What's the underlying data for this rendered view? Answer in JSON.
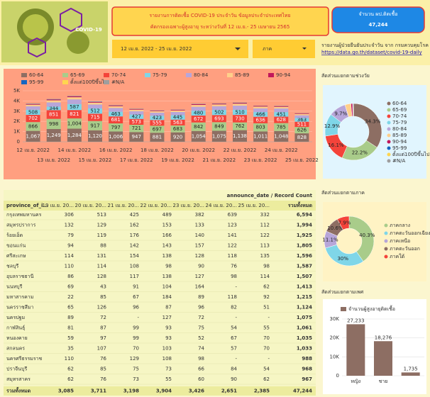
{
  "header": {
    "title_line1": "รายงานการติดเชื้อ COVID-19 ประจำวัน ข้อมูลประจำประเทศไทย",
    "title_line2": "คัดกรองเฉพาะผู้สูงอายุ ระหว่างวันที่ 12 เม.ย.- 25 เมษายน 2565",
    "total_label": "จำนวน ผป.ติดเชื้อ",
    "total_value": "47,244",
    "date_range": "12 เม.ย. 2022 - 25 เม.ย. 2022",
    "region_filter": "ภาค",
    "source": "รายงานผู้ป่วยยืนยันประจำวัน จาก กรมควบคุมโรค",
    "source_link": "https://data.go.th/dataset/covid-19-daily",
    "virus_label": "COVID-19"
  },
  "chart_data": [
    {
      "type": "stacked_bar",
      "categories": [
        "12 เม.ย. 2022",
        "13 เม.ย. 2022",
        "14 เม.ย. 2022",
        "15 เม.ย. 2022",
        "16 เม.ย. 2022",
        "17 เม.ย. 2022",
        "18 เม.ย. 2022",
        "19 เม.ย. 2022",
        "20 เม.ย. 2022",
        "21 เม.ย. 2022",
        "22 เม.ย. 2022",
        "23 เม.ย. 2022",
        "24 เม.ย. 2022",
        "25 เม.ย. 2022"
      ],
      "ylim": [
        0,
        5000
      ],
      "yticks": [
        0,
        {
          "value": 1000,
          "label": "1K"
        },
        {
          "value": 2000,
          "label": "2K"
        },
        {
          "value": 3000,
          "label": "3K"
        },
        {
          "value": 4000,
          "label": "4K"
        },
        {
          "value": 5000,
          "label": "5K"
        }
      ],
      "series": [
        {
          "name": "60-64",
          "color": "#8d6e63",
          "values": [
            1067,
            1249,
            1284,
            1120,
            1006,
            947,
            881,
            920,
            1054,
            1075,
            1138,
            1011,
            1048,
            828
          ],
          "value_labels": [
            "1,067",
            "1,249",
            "1,284",
            "1,120",
            "1,006",
            "947",
            "881",
            "920",
            "1,054",
            "1,075",
            "1,138",
            "1,011",
            "1,048",
            "828"
          ]
        },
        {
          "name": "65-69",
          "color": "#a9cc8a",
          "values": [
            866,
            998,
            1004,
            917,
            797,
            721,
            697,
            683,
            842,
            849,
            762,
            803,
            785,
            626
          ],
          "value_labels": [
            "866",
            "998",
            "1,004",
            "917",
            "797",
            "721",
            "697",
            "683",
            "842",
            "849",
            "762",
            "803",
            "785",
            "626"
          ]
        },
        {
          "name": "70-74",
          "color": "#f4433a",
          "values": [
            702,
            851,
            821,
            715,
            681,
            573,
            555,
            563,
            672,
            693,
            730,
            636,
            628,
            511
          ],
          "labeled": true
        },
        {
          "name": "75-79",
          "color": "#7fd6e8",
          "values": [
            508,
            344,
            587,
            512,
            463,
            427,
            423,
            445,
            480,
            502,
            510,
            466,
            451,
            363
          ],
          "labeled": true
        },
        {
          "name": "80-84",
          "color": "#b7a6d9",
          "values": [
            330,
            420,
            460,
            390,
            370,
            330,
            300,
            310,
            380,
            370,
            400,
            360,
            350,
            270
          ]
        },
        {
          "name": "85-89",
          "color": "#ffcf8a",
          "values": [
            160,
            200,
            210,
            180,
            170,
            150,
            140,
            150,
            180,
            170,
            190,
            170,
            160,
            130
          ]
        },
        {
          "name": "90-94",
          "color": "#c2185b",
          "values": [
            60,
            80,
            80,
            70,
            65,
            55,
            50,
            55,
            70,
            65,
            70,
            60,
            60,
            50
          ]
        },
        {
          "name": "95-99",
          "color": "#1565c0",
          "values": [
            15,
            20,
            20,
            18,
            16,
            14,
            12,
            14,
            18,
            17,
            18,
            15,
            15,
            12
          ]
        },
        {
          "name": "ตั้งแต่100ปีขึ้นไป",
          "color": "#ffd54f",
          "values": [
            3,
            3,
            3,
            3,
            3,
            3,
            3,
            3,
            3,
            3,
            3,
            3,
            3,
            3
          ]
        },
        {
          "name": "#N/A",
          "color": "#9e9e9e",
          "values": [
            40,
            30,
            30,
            30,
            25,
            25,
            20,
            20,
            25,
            25,
            25,
            20,
            20,
            20
          ]
        }
      ]
    },
    {
      "type": "donut",
      "title": "สัดส่วนแยกตามช่วงวัย",
      "categories": [
        "60-64",
        "65-69",
        "70-74",
        "75-79",
        "80-84",
        "85-89",
        "90-94",
        "95-99",
        "ตั้งแต่100ปีขึ้นไป",
        "#N/A"
      ],
      "colors": [
        "#8d6e63",
        "#a9cc8a",
        "#f4433a",
        "#7fd6e8",
        "#b7a6d9",
        "#ffcf8a",
        "#c2185b",
        "#1565c0",
        "#ffd54f",
        "#9e9e9e"
      ],
      "values": [
        34.3,
        22.2,
        16.1,
        12.9,
        9.7,
        3.4,
        1,
        0.3,
        0.05,
        0.05
      ],
      "value_labels": [
        "34.3%",
        "22.2%",
        "16.1%",
        "12.9%",
        "9.7%",
        null,
        null,
        null,
        null,
        null
      ]
    },
    {
      "type": "donut",
      "title": "สัดส่วนแยกตามภาค",
      "categories": [
        "ภาคกลาง",
        "ภาคตะวันออกเฉียงเหนือ",
        "ภาคเหนือ",
        "ภาคตะวันออก",
        "ภาคใต้"
      ],
      "colors": [
        "#a9cc8a",
        "#7fd6e8",
        "#b7a6d9",
        "#8d6e63",
        "#f4433a"
      ],
      "values": [
        40.3,
        30,
        11.1,
        10.6,
        7.9
      ],
      "value_labels": [
        "40.3%",
        "30%",
        "11.1%",
        "10.6%",
        "7.9%"
      ]
    },
    {
      "type": "bar",
      "title": "สัดส่วนแยกตามเพศ",
      "series_name": "จำนวนผู้สูงอายุติดเชื้อ",
      "color": "#8d6e63",
      "categories": [
        "หญิง",
        "ชาย",
        null
      ],
      "values": [
        27233,
        18276,
        1735
      ],
      "value_labels": [
        "27,233",
        "18,276",
        "1,735"
      ],
      "ylim": [
        0,
        30000
      ],
      "yticks": [
        0,
        {
          "value": 10000,
          "label": "10K"
        },
        {
          "value": 20000,
          "label": "20K"
        },
        {
          "value": 30000,
          "label": "30K"
        }
      ]
    }
  ],
  "table": {
    "caption": "announce_date / Record Count",
    "columns": [
      "province_of_i...",
      "19 เม.ย. 20...",
      "20 เม.ย. 20...",
      "21 เม.ย. 20...",
      "22 เม.ย. 20...",
      "23 เม.ย. 20...",
      "24 เม.ย. 20...",
      "25 เม.ย. 20...",
      "รวมทั้งหมด"
    ],
    "rows": [
      [
        "กรุงเทพมหานคร",
        "306",
        "513",
        "425",
        "489",
        "382",
        "639",
        "332",
        "6,594"
      ],
      [
        "สมุทรปราการ",
        "132",
        "129",
        "162",
        "153",
        "133",
        "123",
        "112",
        "1,994"
      ],
      [
        "ร้อยเอ็ด",
        "79",
        "119",
        "176",
        "166",
        "140",
        "141",
        "122",
        "1,925"
      ],
      [
        "ขอนแก่น",
        "94",
        "88",
        "142",
        "143",
        "157",
        "122",
        "113",
        "1,805"
      ],
      [
        "ศรีสะเกษ",
        "114",
        "131",
        "154",
        "138",
        "128",
        "118",
        "135",
        "1,596"
      ],
      [
        "ชลบุรี",
        "110",
        "114",
        "108",
        "98",
        "90",
        "76",
        "98",
        "1,587"
      ],
      [
        "อุบลราชธานี",
        "86",
        "128",
        "117",
        "138",
        "127",
        "98",
        "114",
        "1,507"
      ],
      [
        "นนทบุรี",
        "69",
        "43",
        "91",
        "104",
        "164",
        "-",
        "62",
        "1,413"
      ],
      [
        "มหาสารคาม",
        "22",
        "85",
        "67",
        "184",
        "89",
        "118",
        "92",
        "1,215"
      ],
      [
        "นครราชสีมา",
        "65",
        "126",
        "96",
        "87",
        "96",
        "82",
        "51",
        "1,124"
      ],
      [
        "นครปฐม",
        "89",
        "72",
        "-",
        "127",
        "72",
        "-",
        "-",
        "1,075"
      ],
      [
        "กาฬสินธุ์",
        "81",
        "87",
        "99",
        "93",
        "75",
        "54",
        "55",
        "1,061"
      ],
      [
        "หนองคาย",
        "59",
        "97",
        "99",
        "93",
        "52",
        "67",
        "70",
        "1,035"
      ],
      [
        "สกลนคร",
        "35",
        "107",
        "70",
        "103",
        "74",
        "57",
        "70",
        "1,033"
      ],
      [
        "นครศรีธรรมราช",
        "110",
        "76",
        "129",
        "108",
        "98",
        "-",
        "-",
        "988"
      ],
      [
        "ปราจีนบุรี",
        "62",
        "85",
        "75",
        "73",
        "66",
        "84",
        "54",
        "968"
      ],
      [
        "สมุทรสาคร",
        "62",
        "76",
        "73",
        "55",
        "60",
        "90",
        "62",
        "967"
      ]
    ],
    "total": [
      "รวมทั้งหมด",
      "3,085",
      "3,711",
      "3,198",
      "3,904",
      "3,426",
      "2,651",
      "2,385",
      "47,244"
    ]
  }
}
